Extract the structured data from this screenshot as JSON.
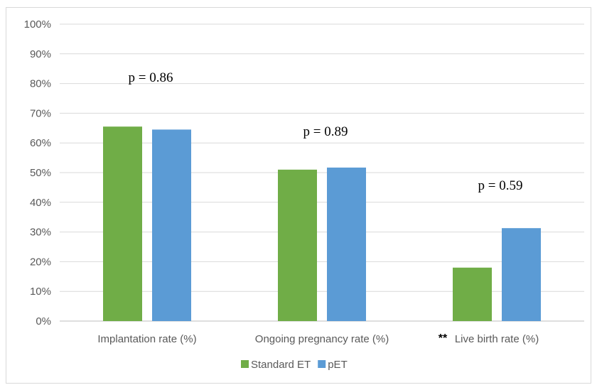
{
  "chart_data": {
    "type": "bar",
    "categories": [
      "Implantation rate (%)",
      "Ongoing pregnancy rate (%)",
      "Live birth rate (%)"
    ],
    "series": [
      {
        "name": "Standard ET",
        "values": [
          65.5,
          51,
          18
        ],
        "color": "#70AD47"
      },
      {
        "name": "pET",
        "values": [
          64.5,
          51.7,
          31.3
        ],
        "color": "#5B9BD5"
      }
    ],
    "ylim": [
      0,
      100
    ],
    "yticks": [
      "0%",
      "10%",
      "20%",
      "30%",
      "40%",
      "50%",
      "60%",
      "70%",
      "80%",
      "90%",
      "100%"
    ],
    "annotations": [
      "p = 0.86",
      "p = 0.89",
      "p = 0.59"
    ],
    "category_markers": [
      "",
      "",
      "**"
    ],
    "legend_position": "bottom",
    "grid": true
  }
}
